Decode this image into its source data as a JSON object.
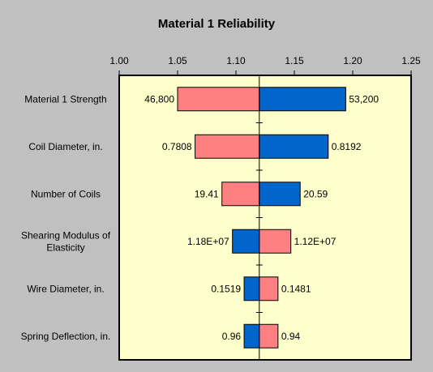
{
  "chart_data": {
    "type": "bar",
    "orientation": "horizontal-tornado",
    "title": "Material 1 Reliability",
    "xlabel": "",
    "ylabel": "",
    "xlim": [
      1.0,
      1.25
    ],
    "x_ticks": [
      "1.00",
      "1.05",
      "1.10",
      "1.15",
      "1.20",
      "1.25"
    ],
    "base_value": 1.12,
    "grid": false,
    "legend": "none",
    "colors": {
      "low_bar": "#ff8080",
      "high_bar": "#0066cc",
      "plot_bg": "#ffffcc",
      "figure_bg": "#c0c0c0"
    },
    "rows": [
      {
        "label": "Material 1 Strength",
        "left_label": "46,800",
        "right_label": "53,200",
        "left_x": 1.05,
        "right_x": 1.194,
        "left_color": "low_bar",
        "right_color": "high_bar"
      },
      {
        "label": "Coil Diameter, in.",
        "left_label": "0.7808",
        "right_label": "0.8192",
        "left_x": 1.065,
        "right_x": 1.179,
        "left_color": "low_bar",
        "right_color": "high_bar"
      },
      {
        "label": "Number of Coils",
        "left_label": "19.41",
        "right_label": "20.59",
        "left_x": 1.088,
        "right_x": 1.155,
        "left_color": "low_bar",
        "right_color": "high_bar"
      },
      {
        "label": "Shearing Modulus of\nElasticity",
        "left_label": "1.18E+07",
        "right_label": "1.12E+07",
        "left_x": 1.097,
        "right_x": 1.147,
        "left_color": "high_bar",
        "right_color": "low_bar"
      },
      {
        "label": "Wire Diameter, in.",
        "left_label": "0.1519",
        "right_label": "0.1481",
        "left_x": 1.107,
        "right_x": 1.136,
        "left_color": "high_bar",
        "right_color": "low_bar"
      },
      {
        "label": "Spring Deflection, in.",
        "left_label": "0.96",
        "right_label": "0.94",
        "left_x": 1.107,
        "right_x": 1.136,
        "left_color": "high_bar",
        "right_color": "low_bar"
      }
    ]
  }
}
